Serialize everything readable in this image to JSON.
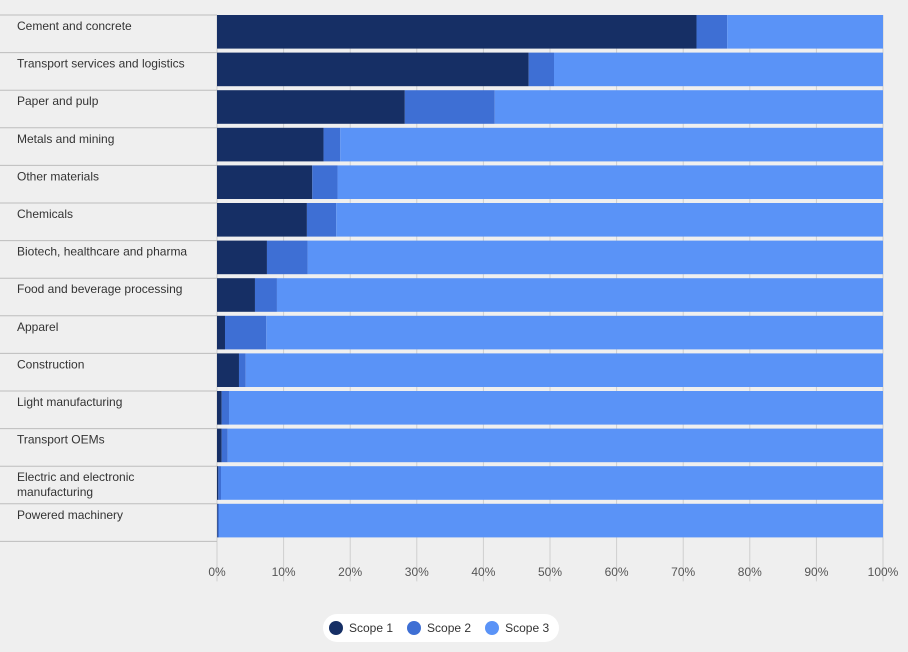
{
  "chart_data": {
    "type": "bar",
    "orientation": "horizontal",
    "stacked": true,
    "title": "",
    "xlabel": "",
    "ylabel": "",
    "xlim": [
      0,
      100
    ],
    "x_ticks": [
      "0%",
      "10%",
      "20%",
      "30%",
      "40%",
      "50%",
      "60%",
      "70%",
      "80%",
      "90%",
      "100%"
    ],
    "legend_position": "bottom-center",
    "categories": [
      [
        "Cement and concrete"
      ],
      [
        "Transport services and logistics"
      ],
      [
        "Paper and pulp"
      ],
      [
        "Metals and mining"
      ],
      [
        "Other materials"
      ],
      [
        "Chemicals"
      ],
      [
        "Biotech, healthcare and pharma"
      ],
      [
        "Food and beverage processing"
      ],
      [
        "Apparel"
      ],
      [
        "Construction"
      ],
      [
        "Light manufacturing"
      ],
      [
        "Transport OEMs"
      ],
      [
        "Electric and electronic",
        "manufacturing"
      ],
      [
        "Powered machinery"
      ]
    ],
    "series": [
      {
        "name": "Scope 1",
        "color": "#162f65",
        "values": [
          72,
          46.8,
          28.2,
          16,
          14.3,
          13.5,
          7.5,
          5.7,
          1.2,
          3.3,
          0.7,
          0.7,
          0.2,
          0.1
        ]
      },
      {
        "name": "Scope 2",
        "color": "#3e6fd4",
        "values": [
          4.6,
          3.8,
          13.5,
          2.5,
          3.8,
          4.4,
          6.1,
          3.3,
          6.2,
          1,
          1.1,
          0.9,
          0.4,
          0.2
        ]
      },
      {
        "name": "Scope 3",
        "color": "#5a93f7",
        "values": [
          23.4,
          49.4,
          58.3,
          81.5,
          81.9,
          82.1,
          86.4,
          91,
          92.6,
          95.7,
          98.2,
          98.4,
          99.4,
          99.7
        ]
      }
    ]
  }
}
